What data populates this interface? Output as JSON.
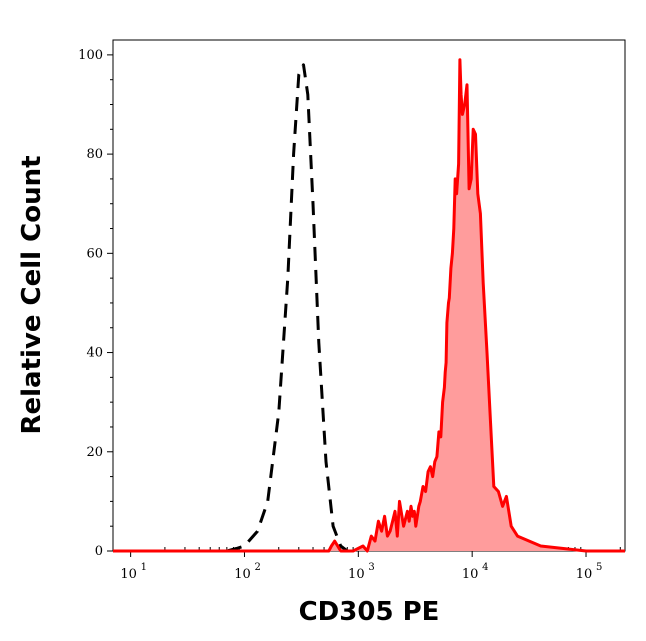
{
  "chart_data": {
    "type": "area",
    "xlabel": "CD305 PE",
    "ylabel": "Relative Cell Count",
    "x_scale": "log",
    "xlim": [
      7,
      220000
    ],
    "ylim": [
      0,
      103
    ],
    "x_ticks": [
      {
        "base": "10",
        "exp": "1",
        "value": 10
      },
      {
        "base": "10",
        "exp": "2",
        "value": 100
      },
      {
        "base": "10",
        "exp": "3",
        "value": 1000
      },
      {
        "base": "10",
        "exp": "4",
        "value": 10000
      },
      {
        "base": "10",
        "exp": "5",
        "value": 100000
      }
    ],
    "y_ticks": [
      0,
      20,
      40,
      60,
      80,
      100
    ],
    "grid": false,
    "legend": "none",
    "series": [
      {
        "style": "dashed",
        "color": "#000000",
        "fill": "none",
        "x": [
          7,
          30,
          70,
          85,
          100,
          130,
          160,
          200,
          240,
          270,
          300,
          330,
          360,
          400,
          450,
          520,
          600,
          700,
          800,
          900
        ],
        "y": [
          0,
          0,
          0,
          0.5,
          1,
          4,
          10,
          28,
          55,
          80,
          96,
          98,
          92,
          70,
          42,
          18,
          5,
          1,
          0,
          0
        ]
      },
      {
        "style": "solid",
        "color": "#ff0000",
        "fill": "#ff9c9c",
        "x": [
          7,
          100,
          500,
          550,
          580,
          620,
          700,
          900,
          1100,
          1200,
          1300,
          1400,
          1500,
          1600,
          1700,
          1800,
          1900,
          2000,
          2100,
          2200,
          2300,
          2500,
          2700,
          2800,
          2900,
          3000,
          3100,
          3200,
          3400,
          3500,
          3700,
          3900,
          4100,
          4300,
          4500,
          4700,
          4900,
          5100,
          5300,
          5500,
          5700,
          5800,
          5900,
          6000,
          6200,
          6300,
          6500,
          6700,
          6900,
          7100,
          7300,
          7600,
          7800,
          8000,
          8200,
          8600,
          9000,
          9400,
          9800,
          10200,
          10700,
          11200,
          11800,
          12500,
          13500,
          14500,
          15500,
          17000,
          18500,
          20000,
          22000,
          25000,
          40000,
          100000,
          220000
        ],
        "y": [
          0,
          0,
          0,
          0,
          1,
          2,
          0,
          0,
          1,
          0,
          3,
          2,
          6,
          4,
          7,
          3,
          4,
          6,
          8,
          3,
          10,
          5,
          8,
          6,
          9,
          7,
          8,
          5,
          9,
          10,
          13,
          12,
          16,
          17,
          15,
          18,
          19,
          24,
          23,
          30,
          33,
          36,
          38,
          46,
          50,
          51,
          57,
          60,
          65,
          75,
          72,
          78,
          99,
          92,
          88,
          90,
          94,
          73,
          75,
          85,
          84,
          72,
          68,
          54,
          40,
          26,
          13,
          12,
          9,
          11,
          5,
          3,
          1,
          0,
          0
        ]
      }
    ]
  }
}
